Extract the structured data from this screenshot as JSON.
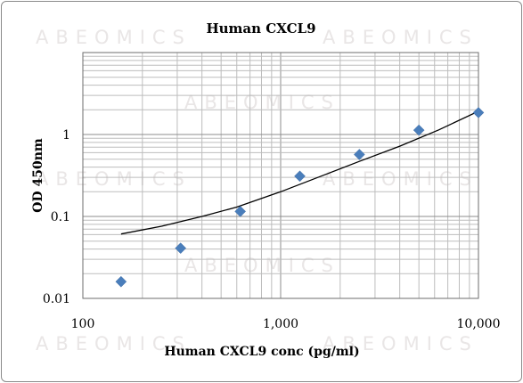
{
  "watermark": "ABEOMICS",
  "chart_data": {
    "type": "scatter",
    "title": "Human CXCL9",
    "xlabel": "Human CXCL9 conc (pg/ml)",
    "ylabel": "OD 450nm",
    "x_scale": "log",
    "y_scale": "log",
    "xlim": [
      100,
      10000
    ],
    "ylim": [
      0.01,
      10
    ],
    "x_ticks": [
      100,
      1000,
      10000
    ],
    "x_tick_labels": [
      "100",
      "1,000",
      "10,000"
    ],
    "y_ticks": [
      0.01,
      0.1,
      1
    ],
    "y_tick_labels": [
      "0.01",
      "0.1",
      "1"
    ],
    "grid": true,
    "series": [
      {
        "kind": "points",
        "marker": "diamond",
        "color": "#4a7ebb",
        "x": [
          156,
          312,
          625,
          1250,
          2500,
          5000,
          10000
        ],
        "y": [
          0.016,
          0.041,
          0.115,
          0.31,
          0.57,
          1.13,
          1.85
        ]
      },
      {
        "kind": "fit-line",
        "color": "#000000",
        "x": [
          156,
          250,
          400,
          600,
          1000,
          1600,
          2500,
          4000,
          6300,
          10000
        ],
        "y": [
          0.061,
          0.076,
          0.1,
          0.13,
          0.2,
          0.31,
          0.47,
          0.72,
          1.14,
          1.92
        ]
      }
    ]
  }
}
